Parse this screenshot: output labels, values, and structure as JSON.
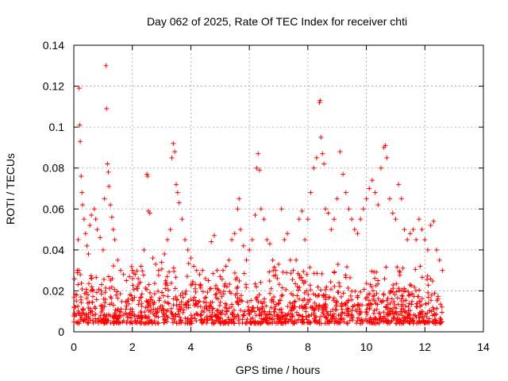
{
  "chart_data": {
    "type": "scatter",
    "title": "Day 062 of 2025, Rate Of TEC Index for receiver chti",
    "xlabel": "GPS time / hours",
    "ylabel": "ROTI / TECUs",
    "xlim": [
      0,
      14
    ],
    "ylim": [
      0,
      0.14
    ],
    "xticks": [
      0,
      2,
      4,
      6,
      8,
      10,
      12,
      14
    ],
    "xtick_labels": [
      "0",
      "2",
      "4",
      "6",
      "8",
      "10",
      "12",
      "14"
    ],
    "yticks": [
      0,
      0.02,
      0.04,
      0.06,
      0.08,
      0.1,
      0.12,
      0.14
    ],
    "ytick_labels": [
      "0",
      "0.02",
      "0.04",
      "0.06",
      "0.08",
      "0.1",
      "0.12",
      "0.14"
    ],
    "grid": true,
    "marker": "plus",
    "color": "#ff0000",
    "series": [
      {
        "name": "ROTI",
        "points": [
          [
            0.05,
            0.012
          ],
          [
            0.1,
            0.018
          ],
          [
            0.12,
            0.03
          ],
          [
            0.15,
            0.045
          ],
          [
            0.18,
            0.119
          ],
          [
            0.2,
            0.101
          ],
          [
            0.22,
            0.093
          ],
          [
            0.25,
            0.076
          ],
          [
            0.28,
            0.068
          ],
          [
            0.3,
            0.062
          ],
          [
            0.35,
            0.055
          ],
          [
            0.4,
            0.048
          ],
          [
            0.45,
            0.042
          ],
          [
            0.5,
            0.038
          ],
          [
            0.55,
            0.052
          ],
          [
            0.6,
            0.057
          ],
          [
            0.7,
            0.06
          ],
          [
            0.75,
            0.055
          ],
          [
            0.8,
            0.05
          ],
          [
            0.9,
            0.046
          ],
          [
            1.0,
            0.04
          ],
          [
            1.05,
            0.065
          ],
          [
            1.1,
            0.13
          ],
          [
            1.12,
            0.109
          ],
          [
            1.15,
            0.082
          ],
          [
            1.18,
            0.078
          ],
          [
            1.2,
            0.071
          ],
          [
            1.25,
            0.062
          ],
          [
            1.3,
            0.056
          ],
          [
            1.35,
            0.05
          ],
          [
            1.4,
            0.045
          ],
          [
            1.5,
            0.035
          ],
          [
            1.6,
            0.03
          ],
          [
            1.7,
            0.028
          ],
          [
            1.8,
            0.025
          ],
          [
            1.9,
            0.027
          ],
          [
            2.0,
            0.03
          ],
          [
            2.1,
            0.028
          ],
          [
            2.2,
            0.026
          ],
          [
            2.3,
            0.032
          ],
          [
            2.4,
            0.04
          ],
          [
            2.5,
            0.077
          ],
          [
            2.52,
            0.076
          ],
          [
            2.55,
            0.059
          ],
          [
            2.6,
            0.058
          ],
          [
            2.7,
            0.036
          ],
          [
            2.8,
            0.033
          ],
          [
            2.9,
            0.03
          ],
          [
            3.0,
            0.034
          ],
          [
            3.1,
            0.038
          ],
          [
            3.2,
            0.045
          ],
          [
            3.3,
            0.05
          ],
          [
            3.35,
            0.085
          ],
          [
            3.4,
            0.092
          ],
          [
            3.45,
            0.088
          ],
          [
            3.5,
            0.072
          ],
          [
            3.55,
            0.068
          ],
          [
            3.6,
            0.063
          ],
          [
            3.7,
            0.055
          ],
          [
            3.8,
            0.045
          ],
          [
            3.9,
            0.04
          ],
          [
            4.0,
            0.036
          ],
          [
            4.1,
            0.032
          ],
          [
            4.2,
            0.03
          ],
          [
            4.3,
            0.028
          ],
          [
            4.4,
            0.03
          ],
          [
            4.5,
            0.026
          ],
          [
            4.6,
            0.025
          ],
          [
            4.7,
            0.044
          ],
          [
            4.8,
            0.047
          ],
          [
            4.9,
            0.03
          ],
          [
            5.0,
            0.027
          ],
          [
            5.1,
            0.03
          ],
          [
            5.2,
            0.032
          ],
          [
            5.3,
            0.035
          ],
          [
            5.4,
            0.045
          ],
          [
            5.5,
            0.048
          ],
          [
            5.6,
            0.06
          ],
          [
            5.65,
            0.065
          ],
          [
            5.7,
            0.05
          ],
          [
            5.8,
            0.042
          ],
          [
            5.9,
            0.035
          ],
          [
            6.0,
            0.04
          ],
          [
            6.1,
            0.045
          ],
          [
            6.2,
            0.057
          ],
          [
            6.25,
            0.08
          ],
          [
            6.3,
            0.087
          ],
          [
            6.35,
            0.079
          ],
          [
            6.4,
            0.06
          ],
          [
            6.5,
            0.055
          ],
          [
            6.6,
            0.045
          ],
          [
            6.7,
            0.043
          ],
          [
            6.8,
            0.035
          ],
          [
            6.9,
            0.03
          ],
          [
            7.0,
            0.033
          ],
          [
            7.1,
            0.06
          ],
          [
            7.2,
            0.045
          ],
          [
            7.3,
            0.048
          ],
          [
            7.4,
            0.035
          ],
          [
            7.5,
            0.03
          ],
          [
            7.6,
            0.035
          ],
          [
            7.7,
            0.055
          ],
          [
            7.8,
            0.059
          ],
          [
            7.9,
            0.045
          ],
          [
            8.0,
            0.055
          ],
          [
            8.1,
            0.068
          ],
          [
            8.2,
            0.08
          ],
          [
            8.3,
            0.085
          ],
          [
            8.4,
            0.112
          ],
          [
            8.42,
            0.113
          ],
          [
            8.45,
            0.095
          ],
          [
            8.5,
            0.087
          ],
          [
            8.55,
            0.082
          ],
          [
            8.6,
            0.06
          ],
          [
            8.7,
            0.058
          ],
          [
            8.8,
            0.05
          ],
          [
            8.9,
            0.055
          ],
          [
            9.0,
            0.065
          ],
          [
            9.1,
            0.088
          ],
          [
            9.2,
            0.077
          ],
          [
            9.3,
            0.068
          ],
          [
            9.4,
            0.06
          ],
          [
            9.5,
            0.055
          ],
          [
            9.6,
            0.05
          ],
          [
            9.7,
            0.048
          ],
          [
            9.8,
            0.055
          ],
          [
            9.9,
            0.06
          ],
          [
            10.0,
            0.065
          ],
          [
            10.1,
            0.07
          ],
          [
            10.2,
            0.074
          ],
          [
            10.3,
            0.068
          ],
          [
            10.4,
            0.062
          ],
          [
            10.5,
            0.08
          ],
          [
            10.6,
            0.09
          ],
          [
            10.65,
            0.091
          ],
          [
            10.7,
            0.085
          ],
          [
            10.8,
            0.065
          ],
          [
            10.9,
            0.058
          ],
          [
            11.0,
            0.055
          ],
          [
            11.1,
            0.072
          ],
          [
            11.2,
            0.065
          ],
          [
            11.3,
            0.05
          ],
          [
            11.4,
            0.045
          ],
          [
            11.5,
            0.048
          ],
          [
            11.6,
            0.05
          ],
          [
            11.7,
            0.045
          ],
          [
            11.8,
            0.055
          ],
          [
            11.9,
            0.05
          ],
          [
            12.0,
            0.045
          ],
          [
            12.1,
            0.04
          ],
          [
            12.2,
            0.052
          ],
          [
            12.3,
            0.054
          ],
          [
            12.4,
            0.04
          ],
          [
            12.5,
            0.035
          ],
          [
            12.6,
            0.03
          ]
        ]
      }
    ]
  }
}
